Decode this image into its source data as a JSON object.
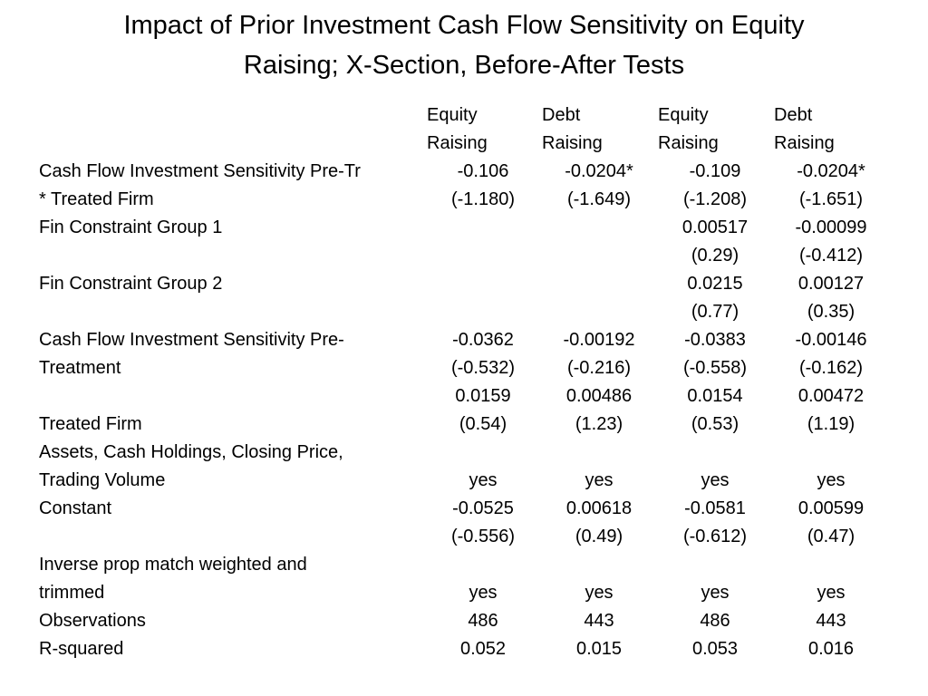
{
  "title_line1": "Impact of Prior Investment Cash Flow Sensitivity on Equity",
  "title_line2": "Raising; X-Section, Before-After Tests",
  "header": {
    "line1": [
      "Equity",
      "Debt",
      "Equity",
      "Debt"
    ],
    "line2": [
      "Raising",
      "Raising",
      "Raising",
      "Raising"
    ]
  },
  "rows": [
    {
      "label": "Cash Flow Investment Sensitivity  Pre-Tr",
      "cells": [
        "-0.106",
        "-0.0204*",
        "-0.109",
        "-0.0204*"
      ]
    },
    {
      "label": "* Treated Firm",
      "cells": [
        "(-1.180)",
        "(-1.649)",
        "(-1.208)",
        "(-1.651)"
      ]
    },
    {
      "label": "Fin Constraint Group 1",
      "cells": [
        "",
        "",
        "0.00517",
        "-0.00099"
      ]
    },
    {
      "label": "",
      "cells": [
        "",
        "",
        "(0.29)",
        "(-0.412)"
      ]
    },
    {
      "label": "Fin Constraint Group 2",
      "cells": [
        "",
        "",
        "0.0215",
        "0.00127"
      ]
    },
    {
      "label": "",
      "cells": [
        "",
        "",
        "(0.77)",
        "(0.35)"
      ]
    },
    {
      "label": "Cash Flow Investment Sensitivity Pre-",
      "cells": [
        "-0.0362",
        "-0.00192",
        "-0.0383",
        "-0.00146"
      ]
    },
    {
      "label": "Treatment",
      "cells": [
        "(-0.532)",
        "(-0.216)",
        "(-0.558)",
        "(-0.162)"
      ]
    },
    {
      "label": "",
      "cells": [
        "0.0159",
        "0.00486",
        "0.0154",
        "0.00472"
      ]
    },
    {
      "label": "Treated Firm",
      "cells": [
        "(0.54)",
        "(1.23)",
        "(0.53)",
        "(1.19)"
      ]
    },
    {
      "label": "Assets, Cash Holdings, Closing Price,",
      "cells": [
        "",
        "",
        "",
        ""
      ]
    },
    {
      "label": "Trading Volume",
      "cells": [
        "yes",
        "yes",
        "yes",
        "yes"
      ]
    },
    {
      "label": "Constant",
      "cells": [
        "-0.0525",
        "0.00618",
        "-0.0581",
        "0.00599"
      ]
    },
    {
      "label": "",
      "cells": [
        "(-0.556)",
        "(0.49)",
        "(-0.612)",
        "(0.47)"
      ]
    },
    {
      "label": "Inverse prop match weighted and",
      "cells": [
        "",
        "",
        "",
        ""
      ]
    },
    {
      "label": "trimmed",
      "cells": [
        "yes",
        "yes",
        "yes",
        "yes"
      ]
    },
    {
      "label": "Observations",
      "cells": [
        "486",
        "443",
        "486",
        "443"
      ]
    },
    {
      "label": "R-squared",
      "cells": [
        "0.052",
        "0.015",
        "0.053",
        "0.016"
      ]
    }
  ]
}
